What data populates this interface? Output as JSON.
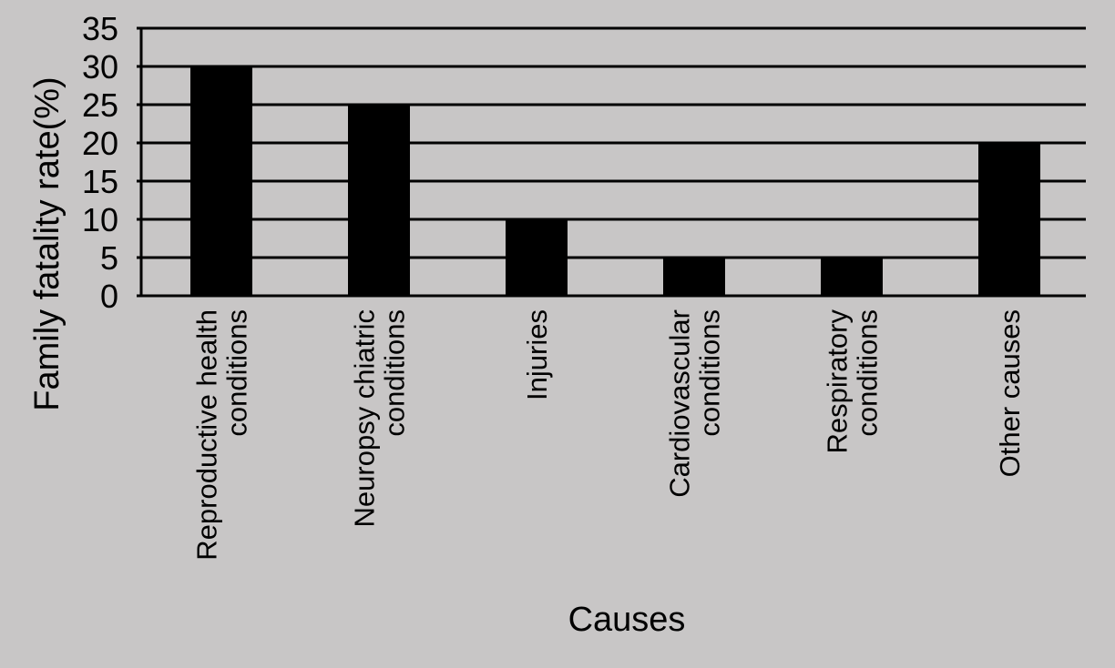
{
  "chart_data": {
    "type": "bar",
    "xlabel": "Causes",
    "ylabel": "Family fatality rate(%)",
    "ylim": [
      0,
      35
    ],
    "yticks": [
      0,
      5,
      10,
      15,
      20,
      25,
      30,
      35
    ],
    "grid": true,
    "categories": [
      [
        "Reproductive health",
        "conditions"
      ],
      [
        "Neuropsy chiatric",
        "conditions"
      ],
      [
        "Injuries"
      ],
      [
        "Cardiovascular",
        "conditions"
      ],
      [
        "Respiratory",
        "conditions"
      ],
      [
        "Other causes"
      ]
    ],
    "values": [
      30,
      25,
      10,
      5,
      5,
      20
    ],
    "colors": {
      "bar": "#000000",
      "grid": "#000000",
      "background": "#c8c6c6"
    }
  }
}
